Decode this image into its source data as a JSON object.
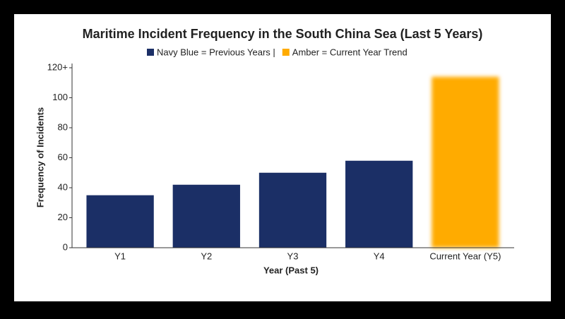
{
  "chart_data": {
    "type": "bar",
    "title": "Maritime Incident Frequency in the South China Sea (Last 5 Years)",
    "legend": [
      {
        "label": "Navy Blue = Previous Years |",
        "color": "#1b2f66"
      },
      {
        "label": "Amber = Current Year Trend",
        "color": "#ffab00"
      }
    ],
    "x_label": "Year (Past 5)",
    "y_label": "Frequency of Incidents",
    "categories": [
      "Y1",
      "Y2",
      "Y3",
      "Y4",
      "Current Year (Y5)"
    ],
    "values": [
      35,
      42,
      50,
      58,
      114
    ],
    "colors": [
      "#1b2f66",
      "#1b2f66",
      "#1b2f66",
      "#1b2f66",
      "#ffab00"
    ],
    "glow": [
      false,
      false,
      false,
      false,
      true
    ],
    "ylim": [
      0,
      120
    ],
    "yticks": [
      0,
      20,
      40,
      60,
      80,
      100,
      {
        "value": 120,
        "label": "120+"
      }
    ],
    "grid": false
  }
}
